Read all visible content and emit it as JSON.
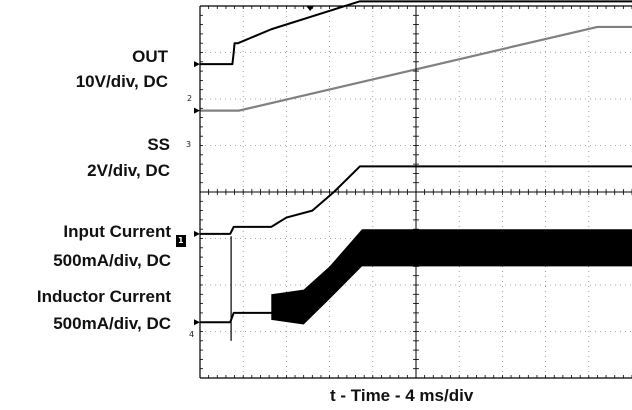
{
  "chart_data": {
    "type": "line",
    "title": "",
    "xlabel": "t - Time - 4 ms/div",
    "x_divisions": 10,
    "y_divisions": 8,
    "x_unit": "div",
    "channels": [
      {
        "id": "2",
        "name": "OUT",
        "scale": "10V/div, DC",
        "marker": "2",
        "color": "#000000",
        "x": [
          0.0,
          0.75,
          0.78,
          0.8,
          0.88,
          1.65,
          3.7,
          10.0
        ],
        "y": [
          -1.25,
          -1.25,
          -1.0,
          -0.8,
          -0.8,
          -0.5,
          0.1,
          0.1
        ]
      },
      {
        "id": "3",
        "name": "SS",
        "scale": "2V/div, DC",
        "marker": "3",
        "color": "#808080",
        "x": [
          0.0,
          0.9,
          9.2,
          10.0
        ],
        "y": [
          -2.25,
          -2.25,
          -0.45,
          -0.45
        ]
      },
      {
        "id": "1",
        "name": "Input Current",
        "scale": "500mA/div, DC",
        "marker": "1",
        "color": "#000000",
        "x": [
          0.0,
          0.7,
          0.78,
          1.65,
          2.0,
          2.6,
          3.1,
          3.7,
          10.0
        ],
        "y": [
          -4.9,
          -4.9,
          -4.75,
          -4.75,
          -4.55,
          -4.4,
          -4.0,
          -3.45,
          -3.45
        ]
      },
      {
        "id": "4",
        "name": "Inductor Current",
        "scale": "500mA/div, DC",
        "marker": "4",
        "color": "#000000",
        "x": [
          0.0,
          0.7,
          0.78,
          1.65,
          2.2,
          2.8,
          3.75,
          10.0
        ],
        "y": [
          -6.8,
          -6.8,
          -6.6,
          -6.6,
          -6.7,
          -6.3,
          -5.15,
          -5.15
        ],
        "envelope_upper": {
          "x": [
            1.65,
            2.4,
            3.0,
            3.75,
            10.0
          ],
          "y": [
            -6.2,
            -6.1,
            -5.6,
            -4.8,
            -4.8
          ]
        },
        "envelope_lower": {
          "x": [
            1.65,
            2.4,
            3.0,
            3.75,
            10.0
          ],
          "y": [
            -6.75,
            -6.85,
            -6.3,
            -5.6,
            -5.6
          ]
        }
      }
    ],
    "grid": true
  }
}
